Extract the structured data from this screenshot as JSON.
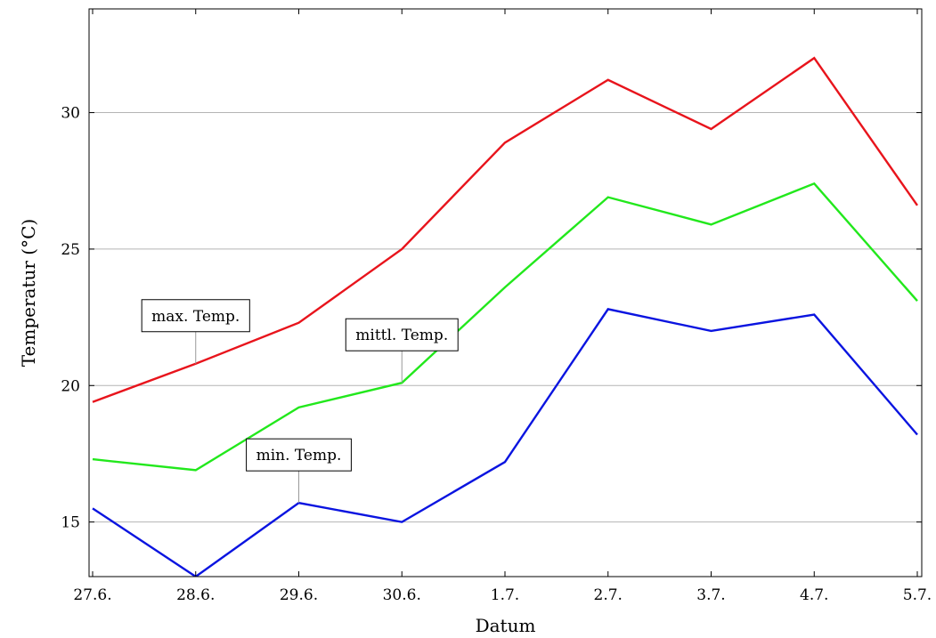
{
  "chart_data": {
    "type": "line",
    "categories": [
      "27.6.",
      "28.6.",
      "29.6.",
      "30.6.",
      "1.7.",
      "2.7.",
      "3.7.",
      "4.7.",
      "5.7."
    ],
    "series": [
      {
        "name": "max. Temp.",
        "color": "#e8141c",
        "values": [
          19.4,
          20.8,
          22.3,
          25.0,
          28.9,
          31.2,
          29.4,
          32.0,
          26.6
        ],
        "annotation_index": 1
      },
      {
        "name": "mittl. Temp.",
        "color": "#22e81c",
        "values": [
          17.3,
          16.9,
          19.2,
          20.1,
          23.6,
          26.9,
          25.9,
          27.4,
          23.1
        ],
        "annotation_index": 3
      },
      {
        "name": "min. Temp.",
        "color": "#0a14e0",
        "values": [
          15.5,
          13.0,
          15.7,
          15.0,
          17.2,
          22.8,
          22.0,
          22.6,
          18.2
        ],
        "annotation_index": 2
      }
    ],
    "xlabel": "Datum",
    "ylabel": "Temperatur (°C)",
    "ylim": [
      13.0,
      33.8
    ],
    "yticks": [
      15,
      20,
      25,
      30
    ],
    "ytick_labels": [
      "15",
      "20",
      "25",
      "30"
    ],
    "grid": "horizontal",
    "legend": "none"
  }
}
